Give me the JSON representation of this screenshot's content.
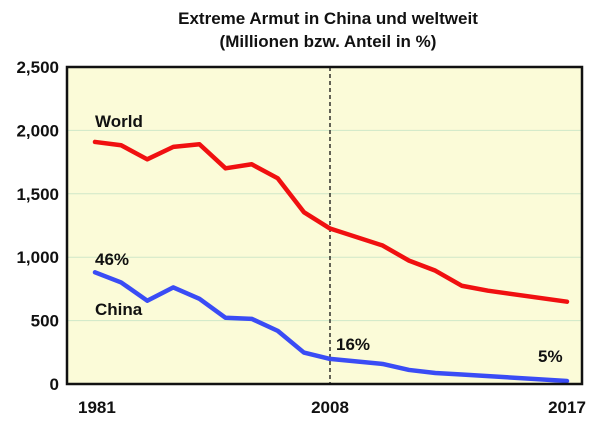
{
  "chart_data": {
    "type": "line",
    "title": [
      "Extreme Armut in China und weltweit",
      "(Millionen bzw. Anteil in %)"
    ],
    "xlabel": "",
    "ylabel": "",
    "ylim": [
      0,
      2500
    ],
    "y_ticks": [
      "0",
      "500",
      "1,000",
      "1,500",
      "2,000",
      "2,500"
    ],
    "y_tick_values": [
      0,
      500,
      1000,
      1500,
      2000,
      2500
    ],
    "x_ticks": [
      "1981",
      "2008",
      "2017"
    ],
    "x_tick_values": [
      1981,
      2008,
      2017
    ],
    "grid": true,
    "reference_line_x": 2008,
    "colors": {
      "World": "#f01010",
      "China": "#3a4cf5",
      "background": "#fbfbd8",
      "grid": "#cfe8c8"
    },
    "series": [
      {
        "name": "World",
        "label": "World",
        "x": [
          1981,
          1984,
          1987,
          1990,
          1993,
          1996,
          1999,
          2002,
          2005,
          2008,
          2010,
          2011,
          2012,
          2013,
          2014,
          2017
        ],
        "values": [
          1909,
          1883,
          1772,
          1870,
          1891,
          1701,
          1733,
          1622,
          1355,
          1226,
          1092,
          973,
          894,
          775,
          736,
          649
        ]
      },
      {
        "name": "China",
        "label": "China",
        "x": [
          1981,
          1984,
          1987,
          1990,
          1993,
          1996,
          1999,
          2002,
          2005,
          2008,
          2010,
          2011,
          2012,
          2013,
          2017
        ],
        "values": [
          881,
          801,
          657,
          762,
          672,
          522,
          514,
          419,
          248,
          198,
          158,
          111,
          87,
          75,
          24
        ]
      }
    ],
    "annotations": [
      {
        "text": "46%",
        "x": 1981,
        "series": "China"
      },
      {
        "text": "16%",
        "x": 2008,
        "series": "China"
      },
      {
        "text": "5%",
        "x": 2017,
        "series": "China"
      }
    ]
  }
}
